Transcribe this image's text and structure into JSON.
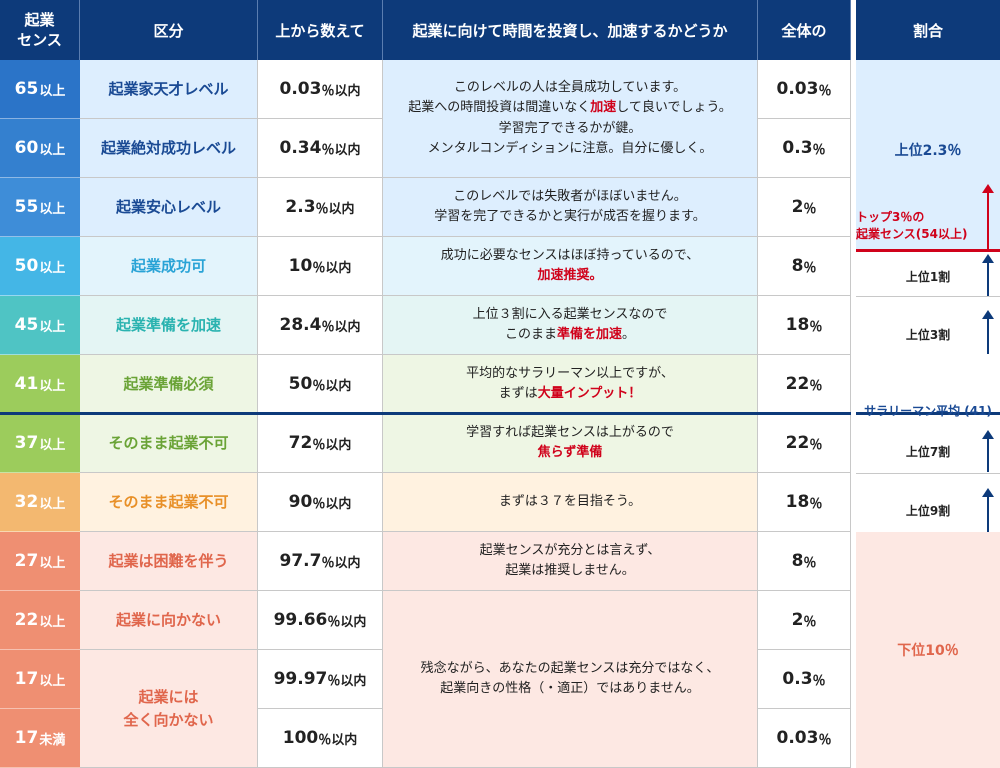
{
  "header": {
    "score": "起業\nセンス",
    "category": "区分",
    "top_count": "上から数えて",
    "investment": "起業に向けて時間を投資し、加速するかどうか",
    "overall": "全体の",
    "ratio": "割合"
  },
  "rows": [
    {
      "score": "65",
      "suffix": "以上",
      "category": "起業家天才レベル",
      "pct": "0.03",
      "pct_unit": "％以内",
      "overall": "0.03",
      "overall_unit": "％"
    },
    {
      "score": "60",
      "suffix": "以上",
      "category": "起業絶対成功レベル",
      "pct": "0.34",
      "pct_unit": "％以内",
      "overall": "0.3",
      "overall_unit": "％"
    },
    {
      "score": "55",
      "suffix": "以上",
      "category": "起業安心レベル",
      "pct": "2.3",
      "pct_unit": "％以内",
      "overall": "2",
      "overall_unit": "％"
    },
    {
      "score": "50",
      "suffix": "以上",
      "category": "起業成功可",
      "pct": "10",
      "pct_unit": "％以内",
      "overall": "8",
      "overall_unit": "％"
    },
    {
      "score": "45",
      "suffix": "以上",
      "category": "起業準備を加速",
      "pct": "28.4",
      "pct_unit": "％以内",
      "overall": "18",
      "overall_unit": "％"
    },
    {
      "score": "41",
      "suffix": "以上",
      "category": "起業準備必須",
      "pct": "50",
      "pct_unit": "％以内",
      "overall": "22",
      "overall_unit": "％"
    },
    {
      "score": "37",
      "suffix": "以上",
      "category": "そのまま起業不可",
      "pct": "72",
      "pct_unit": "％以内",
      "overall": "22",
      "overall_unit": "％"
    },
    {
      "score": "32",
      "suffix": "以上",
      "category": "そのまま起業不可",
      "pct": "90",
      "pct_unit": "％以内",
      "overall": "18",
      "overall_unit": "％"
    },
    {
      "score": "27",
      "suffix": "以上",
      "category": "起業は困難を伴う",
      "pct": "97.7",
      "pct_unit": "％以内",
      "overall": "8",
      "overall_unit": "％"
    },
    {
      "score": "22",
      "suffix": "以上",
      "category": "起業に向かない",
      "pct": "99.66",
      "pct_unit": "％以内",
      "overall": "2",
      "overall_unit": "％"
    },
    {
      "score": "17",
      "suffix": "以上",
      "category": "",
      "pct": "99.97",
      "pct_unit": "％以内",
      "overall": "0.3",
      "overall_unit": "％"
    },
    {
      "score": "17",
      "suffix": "未満",
      "category": "",
      "pct": "100",
      "pct_unit": "％以内",
      "overall": "0.03",
      "overall_unit": "％"
    }
  ],
  "merged_category_17": "起業には\n全く向かない",
  "descriptions": {
    "d1_line1": "このレベルの人は全員成功しています。",
    "d1_line2a": "起業への時間投資は間違いなく",
    "d1_line2b": "加速",
    "d1_line2c": "して良いでしょう。",
    "d1_line3": "学習完了できるかが鍵。",
    "d1_line4": "メンタルコンディションに注意。自分に優しく。",
    "d2_line1": "このレベルでは失敗者がほぼいません。",
    "d2_line2": "学習を完了できるかと実行が成否を握ります。",
    "d3_line1": "成功に必要なセンスはほぼ持っているので、",
    "d3_line2": "加速推奨。",
    "d4_line1": "上位３割に入る起業センスなので",
    "d4_line2a": "このまま",
    "d4_line2b": "準備を加速",
    "d4_line2c": "。",
    "d5_line1": "平均的なサラリーマン以上ですが、",
    "d5_line2a": "まずは",
    "d5_line2b": "大量インプット！",
    "d6_line1": "学習すれば起業センスは上がるので",
    "d6_line2": "焦らず準備",
    "d7_line1": "まずは３７を目指そう。",
    "d8_line1": "起業センスが充分とは言えず、",
    "d8_line2": "起業は推奨しません。",
    "d9_line1": "残念ながら、あなたの起業センスは充分ではなく、",
    "d9_line2": "起業向きの性格（・適正）ではありません。"
  },
  "side": {
    "top23": "上位2.3％",
    "top3_line1": "トップ3％の",
    "top3_line2": "起業センス(54以上)",
    "top10": "上位1割",
    "top30": "上位3割",
    "average": "サラリーマン平均 (41)",
    "top70": "上位7割",
    "top90": "上位9割",
    "bottom10": "下位10％"
  },
  "colors": {
    "header": "#0d3a7a",
    "accent_red": "#d0021b",
    "score": [
      "#2b74c8",
      "#3480cf",
      "#3e8dd8",
      "#44b6e6",
      "#4fc4c4",
      "#9ccc5c",
      "#9ccc5c",
      "#f3b870",
      "#ef8f72",
      "#ef8f72",
      "#ef8f72",
      "#ef8f72"
    ]
  }
}
